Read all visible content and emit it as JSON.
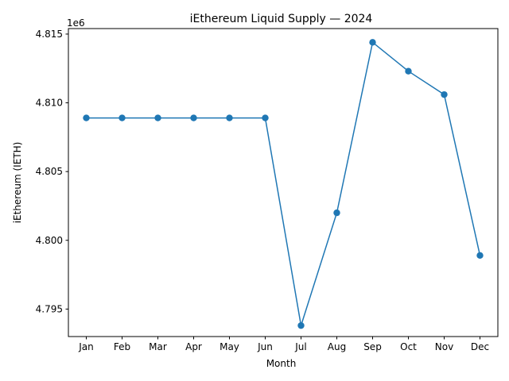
{
  "chart_data": {
    "type": "line",
    "title": "iEthereum Liquid Supply — 2024",
    "xlabel": "Month",
    "ylabel": "iEthereum (IETH)",
    "offset_label": "1e6",
    "categories": [
      "Jan",
      "Feb",
      "Mar",
      "Apr",
      "May",
      "Jun",
      "Jul",
      "Aug",
      "Sep",
      "Oct",
      "Nov",
      "Dec"
    ],
    "series": [
      {
        "name": "iEthereum Liquid Supply",
        "color": "#1f77b4",
        "values": [
          4808900,
          4808900,
          4808900,
          4808900,
          4808900,
          4808900,
          4793800,
          4802000,
          4814400,
          4812300,
          4810600,
          4798900
        ]
      }
    ],
    "ylim": [
      4793000,
      4815400
    ],
    "yticks": [
      4795000,
      4800000,
      4805000,
      4810000,
      4815000
    ],
    "ytick_labels": [
      "4.795",
      "4.800",
      "4.805",
      "4.810",
      "4.815"
    ],
    "grid": false,
    "legend": "none"
  }
}
